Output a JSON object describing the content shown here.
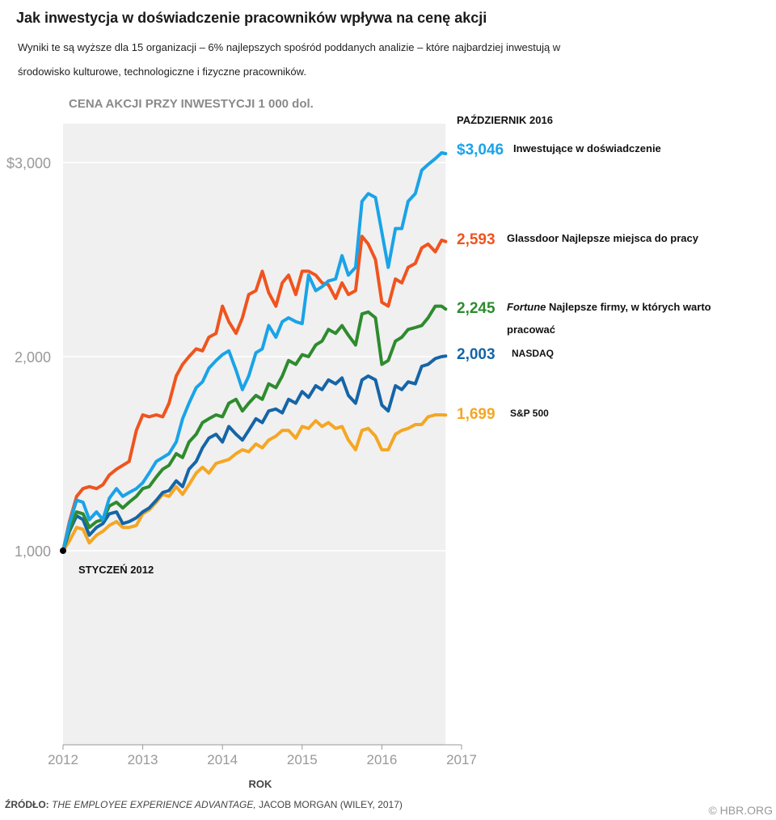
{
  "header": {
    "title": "Jak inwestycja w doświadczenie pracowników wpływa na cenę akcji",
    "subtitle_line1": "Wyniki te są wyższe dla 15 organizacji – 6% najlepszych spośród poddanych analizie – które najbardziej inwestują w",
    "subtitle_line2": "środowisko kulturowe, technologiczne i fizyczne pracowników."
  },
  "footer": {
    "source_label": "ŹRÓDŁO:",
    "source_title": "THE EMPLOYEE EXPERIENCE ADVANTAGE,",
    "source_rest": "JACOB MORGAN (WILEY, 2017)",
    "copyright": "© HBR.ORG"
  },
  "chart_data": {
    "type": "line",
    "title": "CENA AKCJI PRZY INWESTYCJI 1 000 dol.",
    "xlabel": "ROK",
    "ylabel": "",
    "xlim": [
      2012,
      2017
    ],
    "ylim": [
      0,
      3200
    ],
    "x_ticks": [
      {
        "value": 2012,
        "label": "2012"
      },
      {
        "value": 2013,
        "label": "2013"
      },
      {
        "value": 2014,
        "label": "2014"
      },
      {
        "value": 2015,
        "label": "2015"
      },
      {
        "value": 2016,
        "label": "2016"
      },
      {
        "value": 2017,
        "label": "2017"
      }
    ],
    "y_ticks": [
      {
        "value": 3000,
        "label": "$3,000"
      },
      {
        "value": 2000,
        "label": "2,000"
      },
      {
        "value": 1000,
        "label": "1,000"
      }
    ],
    "shaded_range": [
      2012,
      2016.8
    ],
    "annotations": {
      "start": {
        "x": 2012,
        "y": 1000,
        "label": "STYCZEŃ 2012"
      },
      "end": {
        "x": 2016.8,
        "label": "PAŹDZIERNIK 2016"
      }
    },
    "series": [
      {
        "name": "S&P 500",
        "color": "#f5a623",
        "end_value": 1699,
        "end_label": "1,699",
        "x": [
          2012,
          2012.08,
          2012.17,
          2012.25,
          2012.33,
          2012.42,
          2012.5,
          2012.58,
          2012.67,
          2012.75,
          2012.83,
          2012.92,
          2013,
          2013.08,
          2013.17,
          2013.25,
          2013.33,
          2013.42,
          2013.5,
          2013.58,
          2013.67,
          2013.75,
          2013.83,
          2013.92,
          2014,
          2014.08,
          2014.17,
          2014.25,
          2014.33,
          2014.42,
          2014.5,
          2014.58,
          2014.67,
          2014.75,
          2014.83,
          2014.92,
          2015,
          2015.08,
          2015.17,
          2015.25,
          2015.33,
          2015.42,
          2015.5,
          2015.58,
          2015.67,
          2015.75,
          2015.83,
          2015.92,
          2016,
          2016.08,
          2016.17,
          2016.25,
          2016.33,
          2016.42,
          2016.5,
          2016.58,
          2016.67,
          2016.75,
          2016.8
        ],
        "y": [
          1000,
          1050,
          1120,
          1110,
          1040,
          1080,
          1100,
          1130,
          1150,
          1120,
          1120,
          1130,
          1190,
          1210,
          1250,
          1290,
          1280,
          1330,
          1290,
          1340,
          1400,
          1430,
          1400,
          1450,
          1460,
          1470,
          1500,
          1520,
          1510,
          1550,
          1530,
          1570,
          1590,
          1620,
          1620,
          1580,
          1640,
          1630,
          1670,
          1640,
          1660,
          1630,
          1640,
          1570,
          1520,
          1620,
          1630,
          1590,
          1520,
          1520,
          1600,
          1620,
          1630,
          1650,
          1650,
          1690,
          1700,
          1700,
          1699
        ]
      },
      {
        "name": "NASDAQ",
        "color": "#1565a8",
        "end_value": 2003,
        "end_label": "2,003",
        "x": [
          2012,
          2012.08,
          2012.17,
          2012.25,
          2012.33,
          2012.42,
          2012.5,
          2012.58,
          2012.67,
          2012.75,
          2012.83,
          2012.92,
          2013,
          2013.08,
          2013.17,
          2013.25,
          2013.33,
          2013.42,
          2013.5,
          2013.58,
          2013.67,
          2013.75,
          2013.83,
          2013.92,
          2014,
          2014.08,
          2014.17,
          2014.25,
          2014.33,
          2014.42,
          2014.5,
          2014.58,
          2014.67,
          2014.75,
          2014.83,
          2014.92,
          2015,
          2015.08,
          2015.17,
          2015.25,
          2015.33,
          2015.42,
          2015.5,
          2015.58,
          2015.67,
          2015.75,
          2015.83,
          2015.92,
          2016,
          2016.08,
          2016.17,
          2016.25,
          2016.33,
          2016.42,
          2016.5,
          2016.58,
          2016.67,
          2016.75,
          2016.8
        ],
        "y": [
          1000,
          1100,
          1180,
          1160,
          1080,
          1120,
          1140,
          1190,
          1200,
          1140,
          1150,
          1170,
          1200,
          1220,
          1260,
          1300,
          1310,
          1360,
          1330,
          1420,
          1460,
          1530,
          1580,
          1600,
          1560,
          1640,
          1600,
          1570,
          1620,
          1680,
          1660,
          1720,
          1730,
          1710,
          1780,
          1760,
          1820,
          1790,
          1850,
          1830,
          1880,
          1860,
          1890,
          1800,
          1760,
          1880,
          1900,
          1880,
          1750,
          1720,
          1850,
          1830,
          1870,
          1860,
          1950,
          1960,
          1990,
          2000,
          2003
        ]
      },
      {
        "name": "Fortune Najlepsze firmy, w których warto pracować",
        "color": "#2e8b2e",
        "end_value": 2245,
        "end_label": "2,245",
        "label_italic": "Fortune",
        "label_rest_1": "Najlepsze firmy, w których warto",
        "label_rest_2": "pracować",
        "x": [
          2012,
          2012.08,
          2012.17,
          2012.25,
          2012.33,
          2012.42,
          2012.5,
          2012.58,
          2012.67,
          2012.75,
          2012.83,
          2012.92,
          2013,
          2013.08,
          2013.17,
          2013.25,
          2013.33,
          2013.42,
          2013.5,
          2013.58,
          2013.67,
          2013.75,
          2013.83,
          2013.92,
          2014,
          2014.08,
          2014.17,
          2014.25,
          2014.33,
          2014.42,
          2014.5,
          2014.58,
          2014.67,
          2014.75,
          2014.83,
          2014.92,
          2015,
          2015.08,
          2015.17,
          2015.25,
          2015.33,
          2015.42,
          2015.5,
          2015.58,
          2015.67,
          2015.75,
          2015.83,
          2015.92,
          2016,
          2016.08,
          2016.17,
          2016.25,
          2016.33,
          2016.42,
          2016.5,
          2016.58,
          2016.67,
          2016.75,
          2016.8
        ],
        "y": [
          1000,
          1110,
          1200,
          1190,
          1120,
          1150,
          1160,
          1230,
          1250,
          1220,
          1250,
          1280,
          1320,
          1330,
          1380,
          1420,
          1440,
          1500,
          1480,
          1560,
          1600,
          1660,
          1680,
          1700,
          1690,
          1760,
          1780,
          1720,
          1760,
          1800,
          1780,
          1860,
          1840,
          1900,
          1980,
          1960,
          2010,
          2000,
          2060,
          2080,
          2140,
          2120,
          2160,
          2110,
          2060,
          2220,
          2230,
          2200,
          1960,
          1980,
          2080,
          2100,
          2140,
          2150,
          2160,
          2200,
          2260,
          2260,
          2245
        ]
      },
      {
        "name": "Glassdoor Najlepsze miejsca do pracy",
        "color": "#f0541e",
        "end_value": 2593,
        "end_label": "2,593",
        "x": [
          2012,
          2012.08,
          2012.17,
          2012.25,
          2012.33,
          2012.42,
          2012.5,
          2012.58,
          2012.67,
          2012.75,
          2012.83,
          2012.92,
          2013,
          2013.08,
          2013.17,
          2013.25,
          2013.33,
          2013.42,
          2013.5,
          2013.58,
          2013.67,
          2013.75,
          2013.83,
          2013.92,
          2014,
          2014.08,
          2014.17,
          2014.25,
          2014.33,
          2014.42,
          2014.5,
          2014.58,
          2014.67,
          2014.75,
          2014.83,
          2014.92,
          2015,
          2015.08,
          2015.17,
          2015.25,
          2015.33,
          2015.42,
          2015.5,
          2015.58,
          2015.67,
          2015.75,
          2015.83,
          2015.92,
          2016,
          2016.08,
          2016.17,
          2016.25,
          2016.33,
          2016.42,
          2016.5,
          2016.58,
          2016.67,
          2016.75,
          2016.8
        ],
        "y": [
          1000,
          1150,
          1280,
          1320,
          1330,
          1320,
          1340,
          1390,
          1420,
          1440,
          1460,
          1620,
          1700,
          1690,
          1700,
          1690,
          1760,
          1900,
          1960,
          2000,
          2040,
          2030,
          2100,
          2120,
          2260,
          2180,
          2120,
          2200,
          2320,
          2340,
          2440,
          2330,
          2260,
          2380,
          2420,
          2320,
          2440,
          2440,
          2420,
          2380,
          2370,
          2300,
          2380,
          2320,
          2340,
          2620,
          2580,
          2500,
          2280,
          2260,
          2400,
          2380,
          2460,
          2480,
          2560,
          2580,
          2540,
          2600,
          2593
        ]
      },
      {
        "name": "Inwestujące w doświadczenie",
        "color": "#1aa3e8",
        "end_value": 3046,
        "end_label": "$3,046",
        "x": [
          2012,
          2012.08,
          2012.17,
          2012.25,
          2012.33,
          2012.42,
          2012.5,
          2012.58,
          2012.67,
          2012.75,
          2012.83,
          2012.92,
          2013,
          2013.08,
          2013.17,
          2013.25,
          2013.33,
          2013.42,
          2013.5,
          2013.58,
          2013.67,
          2013.75,
          2013.83,
          2013.92,
          2014,
          2014.08,
          2014.17,
          2014.25,
          2014.33,
          2014.42,
          2014.5,
          2014.58,
          2014.67,
          2014.75,
          2014.83,
          2014.92,
          2015,
          2015.08,
          2015.17,
          2015.25,
          2015.33,
          2015.42,
          2015.5,
          2015.58,
          2015.67,
          2015.75,
          2015.83,
          2015.92,
          2016,
          2016.08,
          2016.17,
          2016.25,
          2016.33,
          2016.42,
          2016.5,
          2016.58,
          2016.67,
          2016.75,
          2016.8
        ],
        "y": [
          1000,
          1140,
          1260,
          1250,
          1160,
          1200,
          1160,
          1270,
          1320,
          1280,
          1300,
          1320,
          1350,
          1400,
          1460,
          1480,
          1500,
          1560,
          1680,
          1760,
          1840,
          1870,
          1940,
          1980,
          2010,
          2030,
          1930,
          1830,
          1900,
          2020,
          2040,
          2160,
          2100,
          2180,
          2200,
          2180,
          2170,
          2420,
          2340,
          2360,
          2390,
          2400,
          2520,
          2420,
          2460,
          2800,
          2840,
          2820,
          2640,
          2460,
          2660,
          2660,
          2800,
          2840,
          2960,
          2990,
          3020,
          3050,
          3046
        ]
      }
    ]
  }
}
